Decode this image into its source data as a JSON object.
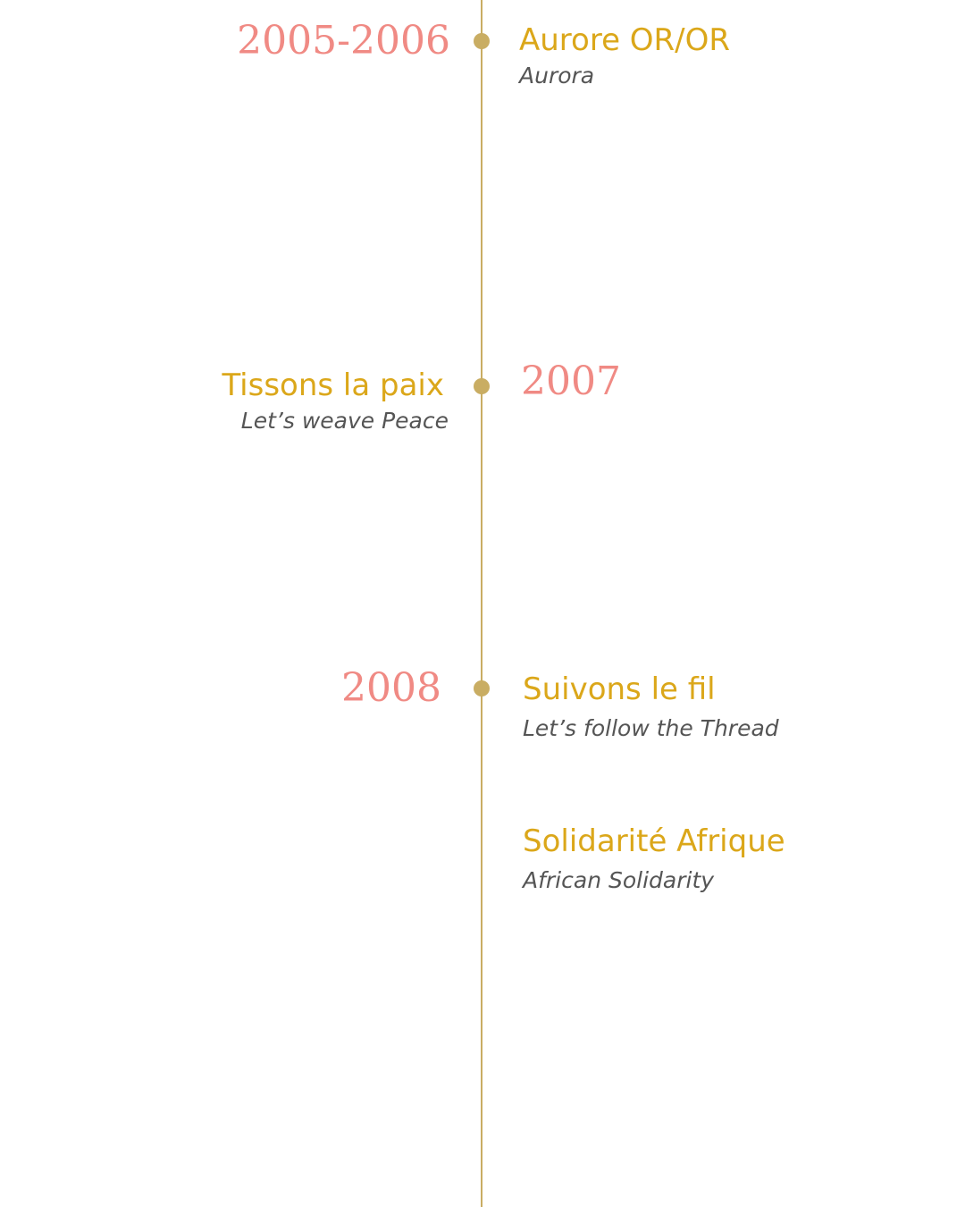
{
  "timeline": {
    "entries": [
      {
        "year": "2005-2006",
        "works": [
          {
            "title": "Aurore OR/OR",
            "subtitle": "Aurora"
          }
        ]
      },
      {
        "year": "2007",
        "works": [
          {
            "title": "Tissons la paix",
            "subtitle": "Let’s weave Peace"
          }
        ]
      },
      {
        "year": "2008",
        "works": [
          {
            "title": "Suivons le fil",
            "subtitle": "Let’s follow the Thread"
          },
          {
            "title": "Solidarité Afrique",
            "subtitle": "African Solidarity"
          }
        ]
      }
    ]
  }
}
